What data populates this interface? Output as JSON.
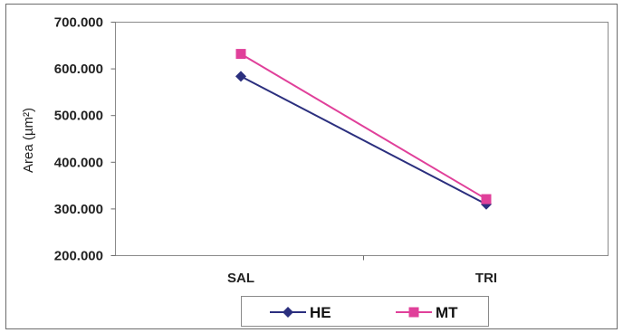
{
  "chart_data": {
    "type": "line",
    "categories": [
      "SAL",
      "TRI"
    ],
    "series": [
      {
        "name": "HE",
        "values": [
          584,
          310
        ],
        "color": "#2b2f7e",
        "marker": "diamond"
      },
      {
        "name": "MT",
        "values": [
          632,
          321
        ],
        "color": "#e0409a",
        "marker": "square"
      }
    ],
    "ylabel": "Area (µm²)",
    "xlabel": "",
    "ylim": [
      200,
      700
    ],
    "yticks": [
      200,
      300,
      400,
      500,
      600,
      700
    ],
    "ytick_labels": [
      "200.000",
      "300.000",
      "400.000",
      "500.000",
      "600.000",
      "700.000"
    ],
    "grid": false,
    "legend": "bottom",
    "plot_background": "#ffffff"
  }
}
